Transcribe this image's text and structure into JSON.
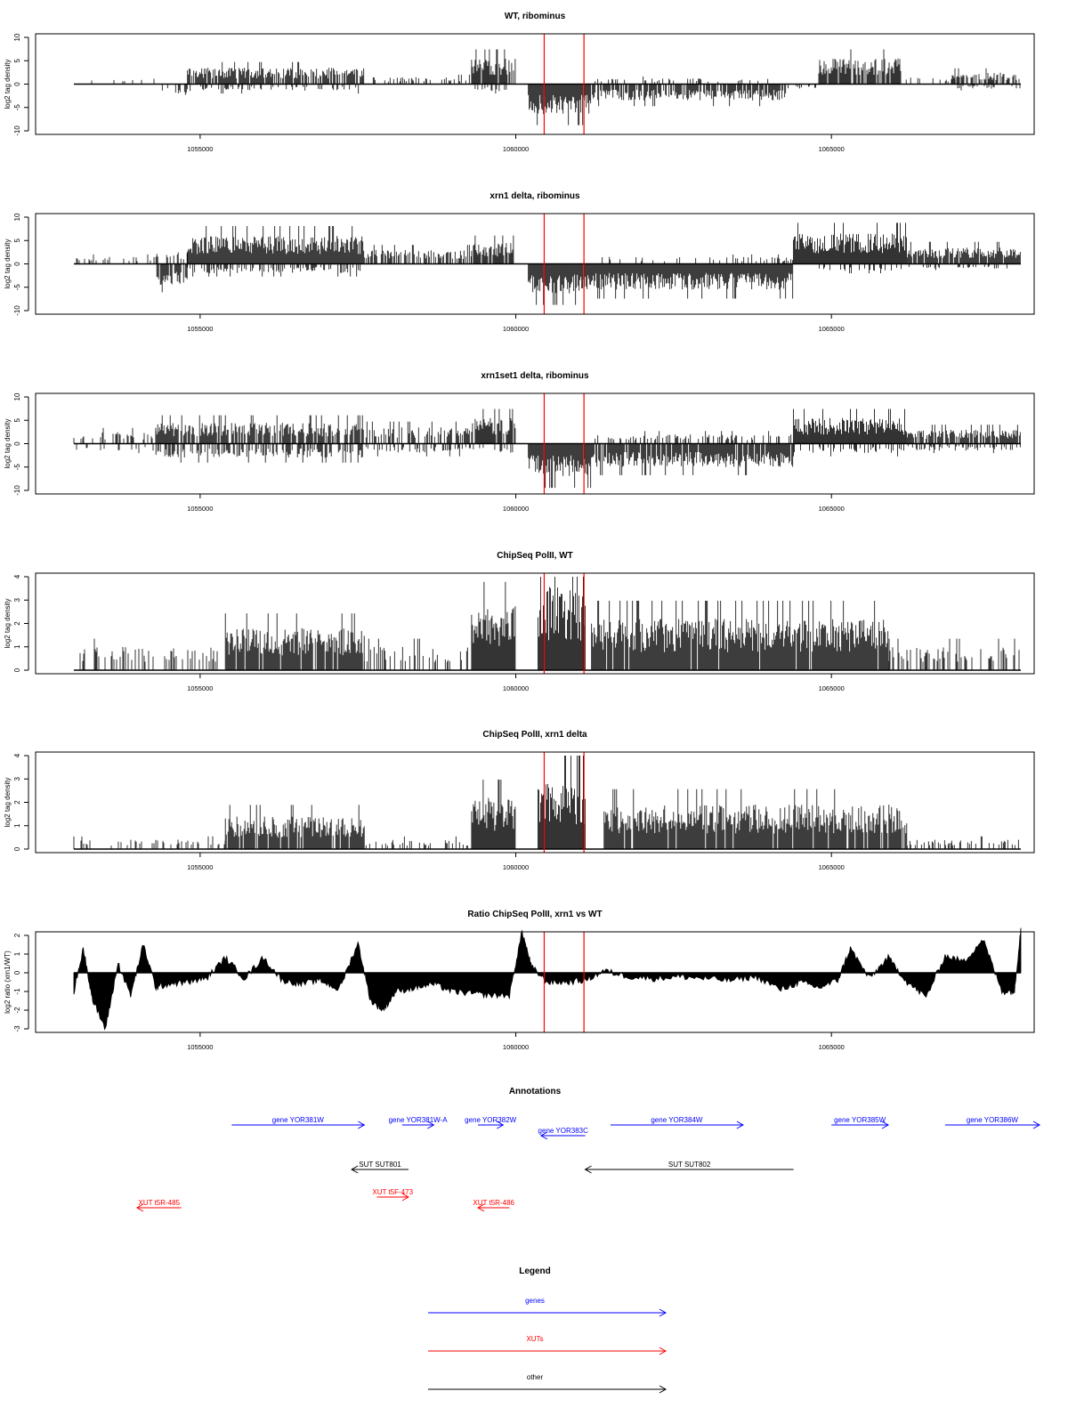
{
  "chart_data": [
    {
      "type": "bar",
      "title": "WT, ribominus",
      "ylabel": "log2 tag density",
      "ylim": [
        -10,
        10
      ],
      "yticks": [
        -10,
        -5,
        0,
        5,
        10
      ],
      "xlim": [
        1053000,
        1068000
      ],
      "xticks": [
        1055000,
        1060000,
        1065000
      ],
      "xtick_labels": [
        "1055000",
        "1060000",
        "1065000"
      ],
      "markers": [
        1060450,
        1061080
      ],
      "grid": false,
      "regions": [
        {
          "start": 1053000,
          "end": 1054400,
          "sign": 1,
          "amp": 1.2,
          "density": 0.15
        },
        {
          "start": 1054400,
          "end": 1054800,
          "sign": -1,
          "amp": 2.5,
          "density": 0.4
        },
        {
          "start": 1054800,
          "end": 1057600,
          "sign": 1,
          "amp": 3.5,
          "density": 0.8
        },
        {
          "start": 1054800,
          "end": 1057600,
          "sign": -1,
          "amp": 1.5,
          "density": 0.2
        },
        {
          "start": 1057600,
          "end": 1059300,
          "sign": 1,
          "amp": 1.5,
          "density": 0.3
        },
        {
          "start": 1059300,
          "end": 1060000,
          "sign": 1,
          "amp": 5.5,
          "density": 0.9
        },
        {
          "start": 1059300,
          "end": 1060000,
          "sign": -1,
          "amp": 1.5,
          "density": 0.3
        },
        {
          "start": 1060200,
          "end": 1061200,
          "sign": -1,
          "amp": 6.5,
          "density": 1.0
        },
        {
          "start": 1061200,
          "end": 1064300,
          "sign": -1,
          "amp": 3.5,
          "density": 0.8
        },
        {
          "start": 1061200,
          "end": 1064300,
          "sign": 1,
          "amp": 1.2,
          "density": 0.15
        },
        {
          "start": 1064300,
          "end": 1064800,
          "sign": -1,
          "amp": 1.0,
          "density": 0.2
        },
        {
          "start": 1064800,
          "end": 1066100,
          "sign": 1,
          "amp": 5.5,
          "density": 0.9
        },
        {
          "start": 1066100,
          "end": 1067000,
          "sign": 1,
          "amp": 1.5,
          "density": 0.2
        },
        {
          "start": 1066900,
          "end": 1068000,
          "sign": 1,
          "amp": 2.5,
          "density": 0.6
        },
        {
          "start": 1066900,
          "end": 1068000,
          "sign": -1,
          "amp": 1.0,
          "density": 0.2
        }
      ]
    },
    {
      "type": "bar",
      "title": "xrn1 delta, ribominus",
      "ylabel": "log2 tag density",
      "ylim": [
        -10,
        10
      ],
      "yticks": [
        -10,
        -5,
        0,
        5,
        10
      ],
      "xlim": [
        1053000,
        1068000
      ],
      "xticks": [
        1055000,
        1060000,
        1065000
      ],
      "xtick_labels": [
        "1055000",
        "1060000",
        "1065000"
      ],
      "markers": [
        1060450,
        1061080
      ],
      "grid": false,
      "regions": [
        {
          "start": 1053000,
          "end": 1054300,
          "sign": 1,
          "amp": 1.5,
          "density": 0.2
        },
        {
          "start": 1054300,
          "end": 1054800,
          "sign": -1,
          "amp": 4.5,
          "density": 0.7
        },
        {
          "start": 1054300,
          "end": 1054800,
          "sign": 1,
          "amp": 2.5,
          "density": 0.4
        },
        {
          "start": 1054800,
          "end": 1057600,
          "sign": 1,
          "amp": 6.0,
          "density": 1.0
        },
        {
          "start": 1054800,
          "end": 1057600,
          "sign": -1,
          "amp": 2.0,
          "density": 0.4
        },
        {
          "start": 1057600,
          "end": 1059300,
          "sign": 1,
          "amp": 3.0,
          "density": 0.6
        },
        {
          "start": 1059300,
          "end": 1060000,
          "sign": 1,
          "amp": 4.5,
          "density": 0.9
        },
        {
          "start": 1060200,
          "end": 1061200,
          "sign": -1,
          "amp": 6.5,
          "density": 1.0
        },
        {
          "start": 1061200,
          "end": 1064400,
          "sign": -1,
          "amp": 5.5,
          "density": 1.0
        },
        {
          "start": 1061200,
          "end": 1064400,
          "sign": 1,
          "amp": 1.5,
          "density": 0.2
        },
        {
          "start": 1064400,
          "end": 1066200,
          "sign": 1,
          "amp": 6.5,
          "density": 1.0
        },
        {
          "start": 1064400,
          "end": 1066200,
          "sign": -1,
          "amp": 1.5,
          "density": 0.2
        },
        {
          "start": 1066200,
          "end": 1068000,
          "sign": 1,
          "amp": 3.5,
          "density": 0.9
        },
        {
          "start": 1066200,
          "end": 1068000,
          "sign": -1,
          "amp": 1.0,
          "density": 0.2
        }
      ]
    },
    {
      "type": "bar",
      "title": "xrn1set1 delta, ribominus",
      "ylabel": "log2 tag density",
      "ylim": [
        -10,
        10
      ],
      "yticks": [
        -10,
        -5,
        0,
        5,
        10
      ],
      "xlim": [
        1053000,
        1068000
      ],
      "xticks": [
        1055000,
        1060000,
        1065000
      ],
      "xtick_labels": [
        "1055000",
        "1060000",
        "1065000"
      ],
      "markers": [
        1060450,
        1061080
      ],
      "grid": false,
      "regions": [
        {
          "start": 1053000,
          "end": 1054300,
          "sign": 1,
          "amp": 2.5,
          "density": 0.3
        },
        {
          "start": 1053000,
          "end": 1054300,
          "sign": -1,
          "amp": 1.5,
          "density": 0.2
        },
        {
          "start": 1054300,
          "end": 1057600,
          "sign": 1,
          "amp": 4.5,
          "density": 0.8
        },
        {
          "start": 1054300,
          "end": 1057600,
          "sign": -1,
          "amp": 3.0,
          "density": 0.5
        },
        {
          "start": 1057600,
          "end": 1059300,
          "sign": 1,
          "amp": 3.5,
          "density": 0.4
        },
        {
          "start": 1057600,
          "end": 1059300,
          "sign": -1,
          "amp": 2.0,
          "density": 0.3
        },
        {
          "start": 1059300,
          "end": 1060000,
          "sign": 1,
          "amp": 5.5,
          "density": 0.9
        },
        {
          "start": 1059300,
          "end": 1060000,
          "sign": -1,
          "amp": 2.0,
          "density": 0.3
        },
        {
          "start": 1060200,
          "end": 1061200,
          "sign": -1,
          "amp": 7.0,
          "density": 1.0
        },
        {
          "start": 1061200,
          "end": 1064400,
          "sign": -1,
          "amp": 5.0,
          "density": 0.9
        },
        {
          "start": 1061200,
          "end": 1064400,
          "sign": 1,
          "amp": 2.0,
          "density": 0.3
        },
        {
          "start": 1064400,
          "end": 1066200,
          "sign": 1,
          "amp": 5.5,
          "density": 1.0
        },
        {
          "start": 1064400,
          "end": 1066200,
          "sign": -1,
          "amp": 2.0,
          "density": 0.3
        },
        {
          "start": 1066200,
          "end": 1068000,
          "sign": 1,
          "amp": 3.0,
          "density": 0.8
        },
        {
          "start": 1066200,
          "end": 1068000,
          "sign": -1,
          "amp": 1.5,
          "density": 0.3
        }
      ]
    },
    {
      "type": "bar",
      "title": "ChipSeq PolII, WT",
      "ylabel": "log2 tag density",
      "ylim": [
        0,
        4
      ],
      "yticks": [
        0,
        1,
        2,
        3,
        4
      ],
      "xlim": [
        1053000,
        1068000
      ],
      "xticks": [
        1055000,
        1060000,
        1065000
      ],
      "xtick_labels": [
        "1055000",
        "1060000",
        "1065000"
      ],
      "markers": [
        1060450,
        1061080
      ],
      "grid": false,
      "regions": [
        {
          "start": 1053000,
          "end": 1055400,
          "sign": 1,
          "amp": 1.0,
          "density": 0.25
        },
        {
          "start": 1055400,
          "end": 1057600,
          "sign": 1,
          "amp": 1.8,
          "density": 0.9
        },
        {
          "start": 1057600,
          "end": 1059300,
          "sign": 1,
          "amp": 1.0,
          "density": 0.35
        },
        {
          "start": 1059300,
          "end": 1060000,
          "sign": 1,
          "amp": 2.8,
          "density": 1.0
        },
        {
          "start": 1060350,
          "end": 1061100,
          "sign": 1,
          "amp": 3.6,
          "density": 1.0
        },
        {
          "start": 1061200,
          "end": 1065900,
          "sign": 1,
          "amp": 2.2,
          "density": 0.95
        },
        {
          "start": 1065900,
          "end": 1068000,
          "sign": 1,
          "amp": 1.0,
          "density": 0.3
        }
      ]
    },
    {
      "type": "bar",
      "title": "ChipSeq PolII, xrn1 delta",
      "ylabel": "log2 tag density",
      "ylim": [
        0,
        4
      ],
      "yticks": [
        0,
        1,
        2,
        3,
        4
      ],
      "xlim": [
        1053000,
        1068000
      ],
      "xticks": [
        1055000,
        1060000,
        1065000
      ],
      "xtick_labels": [
        "1055000",
        "1060000",
        "1065000"
      ],
      "markers": [
        1060450,
        1061080
      ],
      "grid": false,
      "regions": [
        {
          "start": 1053000,
          "end": 1055400,
          "sign": 1,
          "amp": 0.4,
          "density": 0.2
        },
        {
          "start": 1055400,
          "end": 1057600,
          "sign": 1,
          "amp": 1.4,
          "density": 0.9
        },
        {
          "start": 1057600,
          "end": 1059300,
          "sign": 1,
          "amp": 0.4,
          "density": 0.3
        },
        {
          "start": 1059300,
          "end": 1060000,
          "sign": 1,
          "amp": 2.2,
          "density": 1.0
        },
        {
          "start": 1060350,
          "end": 1061100,
          "sign": 1,
          "amp": 3.0,
          "density": 1.0
        },
        {
          "start": 1061400,
          "end": 1066200,
          "sign": 1,
          "amp": 1.9,
          "density": 0.95
        },
        {
          "start": 1066200,
          "end": 1068000,
          "sign": 1,
          "amp": 0.4,
          "density": 0.3
        }
      ]
    },
    {
      "type": "area",
      "title": "Ratio ChipSeq PolII, xrn1 vs WT",
      "ylabel": "log2 ratio (xrn1/WT)",
      "ylim": [
        -3,
        2
      ],
      "yticks": [
        -3,
        -2,
        -1,
        0,
        1,
        2
      ],
      "xlim": [
        1053000,
        1068000
      ],
      "xticks": [
        1055000,
        1060000,
        1065000
      ],
      "xtick_labels": [
        "1055000",
        "1060000",
        "1065000"
      ],
      "markers": [
        1060450,
        1061080
      ],
      "grid": false,
      "x": [
        1053000,
        1053150,
        1053300,
        1053500,
        1053700,
        1053900,
        1054100,
        1054300,
        1054500,
        1054800,
        1055100,
        1055400,
        1055700,
        1056000,
        1056300,
        1056600,
        1056900,
        1057200,
        1057500,
        1057700,
        1057900,
        1058100,
        1058400,
        1058700,
        1059000,
        1059300,
        1059600,
        1059900,
        1060100,
        1060250,
        1060500,
        1060800,
        1061100,
        1061400,
        1061800,
        1062200,
        1062600,
        1063000,
        1063400,
        1063800,
        1064200,
        1064500,
        1064800,
        1065100,
        1065300,
        1065600,
        1065900,
        1066200,
        1066500,
        1066800,
        1067100,
        1067400,
        1067700,
        1067900,
        1068000
      ],
      "y": [
        -1.0,
        1.3,
        -1.5,
        -3.0,
        0.5,
        -1.2,
        1.5,
        -0.8,
        -0.6,
        -0.5,
        -0.3,
        0.8,
        -0.3,
        0.8,
        -0.4,
        -0.6,
        -0.4,
        -0.9,
        1.6,
        -1.5,
        -2.0,
        -1.0,
        -0.8,
        -0.6,
        -1.0,
        -1.1,
        -1.2,
        -1.2,
        2.2,
        0.3,
        -0.5,
        -0.5,
        -0.4,
        0.1,
        -0.2,
        -0.3,
        -0.2,
        -0.3,
        -0.4,
        -0.2,
        -0.9,
        -0.5,
        -0.8,
        -0.4,
        1.3,
        -0.3,
        0.8,
        -0.5,
        -1.3,
        0.9,
        0.6,
        1.8,
        -1.0,
        -1.0,
        2.4
      ]
    }
  ],
  "annotations": {
    "title": "Annotations",
    "xlim": [
      1053000,
      1068000
    ],
    "features": [
      {
        "label": "gene YOR381W",
        "start": 1055500,
        "end": 1057600,
        "strand": "+",
        "kind": "gene",
        "row": 0
      },
      {
        "label": "gene YOR381W-A",
        "start": 1058200,
        "end": 1058700,
        "strand": "+",
        "kind": "gene",
        "row": 0
      },
      {
        "label": "gene YOR382W",
        "start": 1059400,
        "end": 1059800,
        "strand": "+",
        "kind": "gene",
        "row": 0
      },
      {
        "label": "gene YOR383C",
        "start": 1060400,
        "end": 1061100,
        "strand": "-",
        "kind": "gene",
        "row": 1
      },
      {
        "label": "gene YOR384W",
        "start": 1061500,
        "end": 1063600,
        "strand": "+",
        "kind": "gene",
        "row": 0
      },
      {
        "label": "gene YOR385W",
        "start": 1065000,
        "end": 1065900,
        "strand": "+",
        "kind": "gene",
        "row": 0
      },
      {
        "label": "gene YOR386W",
        "start": 1066800,
        "end": 1068500,
        "strand": "+",
        "kind": "gene",
        "row": 0
      },
      {
        "label": "SUT SUT801",
        "start": 1057400,
        "end": 1058300,
        "strand": "-",
        "kind": "other",
        "row": 2
      },
      {
        "label": "SUT SUT802",
        "start": 1061100,
        "end": 1064400,
        "strand": "-",
        "kind": "other",
        "row": 2
      },
      {
        "label": "XUT t5R-485",
        "start": 1054000,
        "end": 1054700,
        "strand": "-",
        "kind": "xut",
        "row": 3
      },
      {
        "label": "XUT t5F-473",
        "start": 1057800,
        "end": 1058300,
        "strand": "+",
        "kind": "xut",
        "row": 4
      },
      {
        "label": "XUT t5R-486",
        "start": 1059400,
        "end": 1059900,
        "strand": "-",
        "kind": "xut",
        "row": 3
      }
    ]
  },
  "legend": {
    "title": "Legend",
    "items": [
      {
        "label": "genes",
        "color": "#0000ff"
      },
      {
        "label": "XUTs",
        "color": "#ff0000"
      },
      {
        "label": "other",
        "color": "#000000"
      }
    ]
  },
  "colors": {
    "bars": "#000000",
    "marker": "#ff0000",
    "gene": "#0000ff",
    "xut": "#ff0000",
    "other": "#000000"
  }
}
